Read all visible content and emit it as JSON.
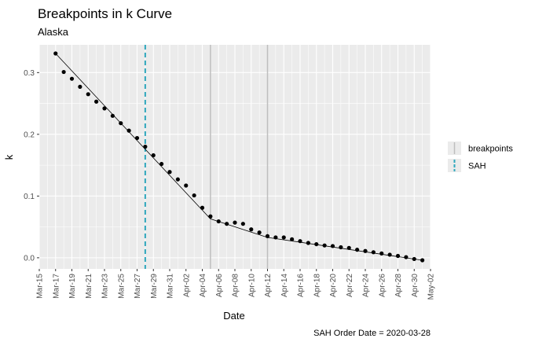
{
  "chart_data": {
    "type": "scatter",
    "title": "Breakpoints in k Curve",
    "subtitle": "Alaska",
    "xlabel": "Date",
    "ylabel": "k",
    "caption": "SAH Order Date = 2020-03-28",
    "xlim": [
      "2020-03-15",
      "2020-05-02"
    ],
    "ylim": [
      -0.018,
      0.345
    ],
    "x_tick_labels": [
      "Mar-15",
      "Mar-17",
      "Mar-19",
      "Mar-21",
      "Mar-23",
      "Mar-25",
      "Mar-27",
      "Mar-29",
      "Mar-31",
      "Apr-02",
      "Apr-04",
      "Apr-06",
      "Apr-08",
      "Apr-10",
      "Apr-12",
      "Apr-14",
      "Apr-16",
      "Apr-18",
      "Apr-20",
      "Apr-22",
      "Apr-24",
      "Apr-26",
      "Apr-28",
      "Apr-30",
      "May-02"
    ],
    "y_ticks": [
      0.0,
      0.1,
      0.2,
      0.3
    ],
    "y_tick_labels": [
      "0.0",
      "0.1",
      "0.2",
      "0.3"
    ],
    "grid": true,
    "points": {
      "x": [
        "2020-03-17",
        "2020-03-18",
        "2020-03-19",
        "2020-03-20",
        "2020-03-21",
        "2020-03-22",
        "2020-03-23",
        "2020-03-24",
        "2020-03-25",
        "2020-03-26",
        "2020-03-27",
        "2020-03-28",
        "2020-03-29",
        "2020-03-30",
        "2020-03-31",
        "2020-04-01",
        "2020-04-02",
        "2020-04-03",
        "2020-04-04",
        "2020-04-05",
        "2020-04-06",
        "2020-04-07",
        "2020-04-08",
        "2020-04-09",
        "2020-04-10",
        "2020-04-11",
        "2020-04-12",
        "2020-04-13",
        "2020-04-14",
        "2020-04-15",
        "2020-04-16",
        "2020-04-17",
        "2020-04-18",
        "2020-04-19",
        "2020-04-20",
        "2020-04-21",
        "2020-04-22",
        "2020-04-23",
        "2020-04-24",
        "2020-04-25",
        "2020-04-26",
        "2020-04-27",
        "2020-04-28",
        "2020-04-29",
        "2020-04-30",
        "2020-05-01"
      ],
      "y": [
        0.331,
        0.301,
        0.29,
        0.277,
        0.265,
        0.253,
        0.242,
        0.23,
        0.218,
        0.206,
        0.194,
        0.18,
        0.166,
        0.152,
        0.139,
        0.127,
        0.117,
        0.101,
        0.081,
        0.067,
        0.059,
        0.055,
        0.057,
        0.055,
        0.046,
        0.041,
        0.035,
        0.033,
        0.033,
        0.03,
        0.027,
        0.024,
        0.022,
        0.02,
        0.019,
        0.017,
        0.016,
        0.013,
        0.011,
        0.009,
        0.007,
        0.005,
        0.003,
        0.001,
        -0.002,
        -0.004
      ]
    },
    "fit_line": {
      "x": [
        "2020-03-17",
        "2020-04-05",
        "2020-04-12",
        "2020-05-01"
      ],
      "y": [
        0.331,
        0.063,
        0.033,
        -0.004
      ]
    },
    "vlines": [
      {
        "series": "breakpoints",
        "x": "2020-04-05",
        "color": "#bebebe",
        "style": "solid"
      },
      {
        "series": "breakpoints",
        "x": "2020-04-12",
        "color": "#bebebe",
        "style": "solid"
      },
      {
        "series": "SAH",
        "x": "2020-03-28",
        "color": "#2ea7bd",
        "style": "dashed"
      }
    ],
    "legend": {
      "position": "right",
      "items": [
        {
          "label": "breakpoints",
          "color": "#bebebe",
          "style": "solid"
        },
        {
          "label": "SAH",
          "color": "#2ea7bd",
          "style": "dashed"
        }
      ]
    },
    "colors": {
      "panel_bg": "#ebebeb",
      "grid": "#ffffff",
      "points": "#000000",
      "fit": "#000000"
    }
  }
}
